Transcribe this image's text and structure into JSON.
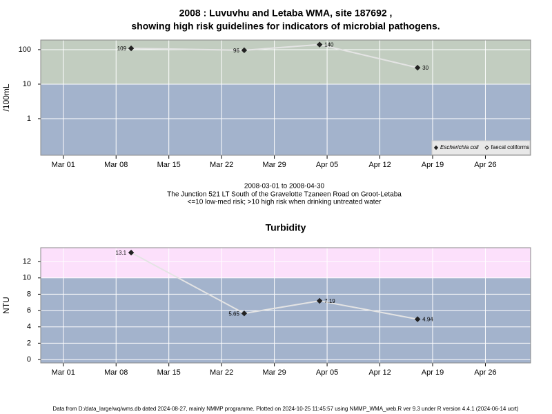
{
  "chart_data": [
    {
      "type": "line",
      "title": [
        "2008 : Luvuvhu and Letaba WMA, site 187692 ,",
        "showing high risk guidelines for indicators of microbial pathogens."
      ],
      "y_label": "/100mL",
      "log_y": true,
      "threshold": 10,
      "band_colors": [
        "#a3b3cc",
        "#c2cdc0"
      ],
      "x": [
        "2008-03-10",
        "2008-03-25",
        "2008-04-04",
        "2008-04-17"
      ],
      "xlim": [
        "2008-02-27",
        "2008-05-02"
      ],
      "xticks": [
        {
          "value": "2008-03-01",
          "label": "Mar 01"
        },
        {
          "value": "2008-03-08",
          "label": "Mar 08"
        },
        {
          "value": "2008-03-15",
          "label": "Mar 15"
        },
        {
          "value": "2008-03-22",
          "label": "Mar 22"
        },
        {
          "value": "2008-03-29",
          "label": "Mar 29"
        },
        {
          "value": "2008-04-05",
          "label": "Apr 05"
        },
        {
          "value": "2008-04-12",
          "label": "Apr 12"
        },
        {
          "value": "2008-04-19",
          "label": "Apr 19"
        },
        {
          "value": "2008-04-26",
          "label": "Apr 26"
        }
      ],
      "ylim": [
        0.087,
        190
      ],
      "yticks": [
        1,
        10,
        100
      ],
      "series": [
        {
          "name": "Escherichia coli",
          "color": "#222222",
          "marker": "filled",
          "values": [
            109,
            96,
            140,
            30
          ]
        },
        {
          "name": "faecal coliforms",
          "color": "#222222",
          "marker": "open",
          "values": [
            null,
            null,
            null,
            null
          ]
        }
      ],
      "legend": "bottom-right"
    },
    {
      "type": "line",
      "title": "Turbidity",
      "y_label": "NTU",
      "log_y": false,
      "threshold": 10,
      "band_colors": [
        "#a3b3cc",
        "#fce0fb"
      ],
      "x": [
        "2008-03-10",
        "2008-03-25",
        "2008-04-04",
        "2008-04-17"
      ],
      "xlim": [
        "2008-02-27",
        "2008-05-02"
      ],
      "xticks": [
        {
          "value": "2008-03-01",
          "label": "Mar 01"
        },
        {
          "value": "2008-03-08",
          "label": "Mar 08"
        },
        {
          "value": "2008-03-15",
          "label": "Mar 15"
        },
        {
          "value": "2008-03-22",
          "label": "Mar 22"
        },
        {
          "value": "2008-03-29",
          "label": "Mar 29"
        },
        {
          "value": "2008-04-05",
          "label": "Apr 05"
        },
        {
          "value": "2008-04-12",
          "label": "Apr 12"
        },
        {
          "value": "2008-04-19",
          "label": "Apr 19"
        },
        {
          "value": "2008-04-26",
          "label": "Apr 26"
        }
      ],
      "ylim": [
        -0.42,
        13.7
      ],
      "yticks": [
        0,
        2,
        4,
        6,
        8,
        10,
        12
      ],
      "series": [
        {
          "name": "Turbidity",
          "color": "#222222",
          "marker": "filled",
          "values": [
            13.1,
            5.65,
            7.19,
            4.94
          ]
        }
      ]
    }
  ],
  "caption": [
    "2008-03-01 to 2008-04-30",
    "The Junction 521 LT South of the Gravelotte Tzaneen Road on Groot-Letaba",
    "<=10 low-med risk; >10 high risk when drinking untreated water"
  ],
  "footer": "Data from D:/data_large/wq/wms.db dated 2024-08-27, mainly NMMP programme. Plotted on 2024-10-25 11:45:57 using NMMP_WMA_web.R ver 9.3 under R version 4.4.1 (2024-06-14 ucrt)"
}
